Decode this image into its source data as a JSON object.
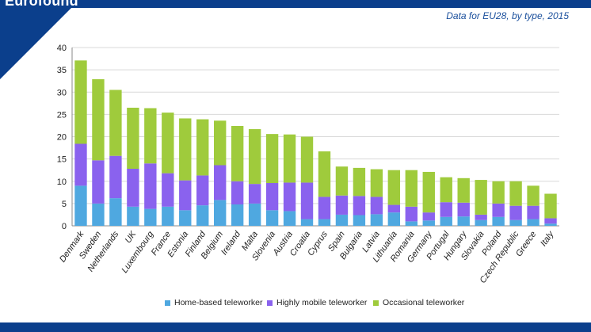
{
  "header": {
    "brand": "Eurofound",
    "subtitle": "Data for EU28, by type, 2015"
  },
  "colors": {
    "band": "#0b3f8c",
    "home": "#4fa8e0",
    "mobile": "#8a62ee",
    "occasional": "#9fcb3c"
  },
  "chart_data": {
    "type": "bar",
    "stacked": true,
    "categories": [
      "Denmark",
      "Sweden",
      "Netherlands",
      "UK",
      "Luxembourg",
      "France",
      "Estonia",
      "Finland",
      "Belgium",
      "Ireland",
      "Malta",
      "Slovenia",
      "Austria",
      "Croatia",
      "Cyprus",
      "Spain",
      "Bulgaria",
      "Latvia",
      "Lithuania",
      "Romania",
      "Germany",
      "Portugal",
      "Hungary",
      "Slovakia",
      "Poland",
      "Czech Republic",
      "Greece",
      "Italy"
    ],
    "series": [
      {
        "name": "Home-based teleworker",
        "color": "#4fa8e0",
        "values": [
          9.0,
          5.0,
          6.2,
          4.3,
          3.8,
          4.3,
          3.5,
          4.6,
          5.8,
          4.8,
          5.0,
          3.5,
          3.3,
          1.5,
          1.5,
          2.5,
          2.4,
          2.6,
          3.0,
          1.0,
          1.2,
          2.0,
          2.1,
          1.3,
          2.0,
          1.3,
          1.5,
          0.5
        ]
      },
      {
        "name": "Highly mobile teleworker",
        "color": "#8a62ee",
        "values": [
          9.4,
          9.7,
          9.5,
          8.5,
          10.2,
          7.5,
          6.7,
          6.7,
          7.8,
          5.2,
          4.4,
          6.1,
          6.4,
          8.2,
          5.0,
          4.3,
          4.3,
          3.9,
          1.7,
          3.3,
          1.8,
          3.3,
          3.1,
          1.2,
          3.0,
          3.2,
          3.0,
          1.2
        ]
      },
      {
        "name": "Occasional teleworker",
        "color": "#9fcb3c",
        "values": [
          18.7,
          18.2,
          14.8,
          13.7,
          12.4,
          13.6,
          13.9,
          12.6,
          10.0,
          12.4,
          12.3,
          11.0,
          10.8,
          10.3,
          10.2,
          6.5,
          6.3,
          6.2,
          7.8,
          8.2,
          9.1,
          5.6,
          5.5,
          7.8,
          5.0,
          5.5,
          4.5,
          5.5
        ]
      }
    ],
    "ylim": [
      0,
      40
    ],
    "yticks": [
      0,
      5,
      10,
      15,
      20,
      25,
      30,
      35,
      40
    ],
    "xlabel": "",
    "ylabel": "",
    "grid": true,
    "legend": "bottom"
  }
}
